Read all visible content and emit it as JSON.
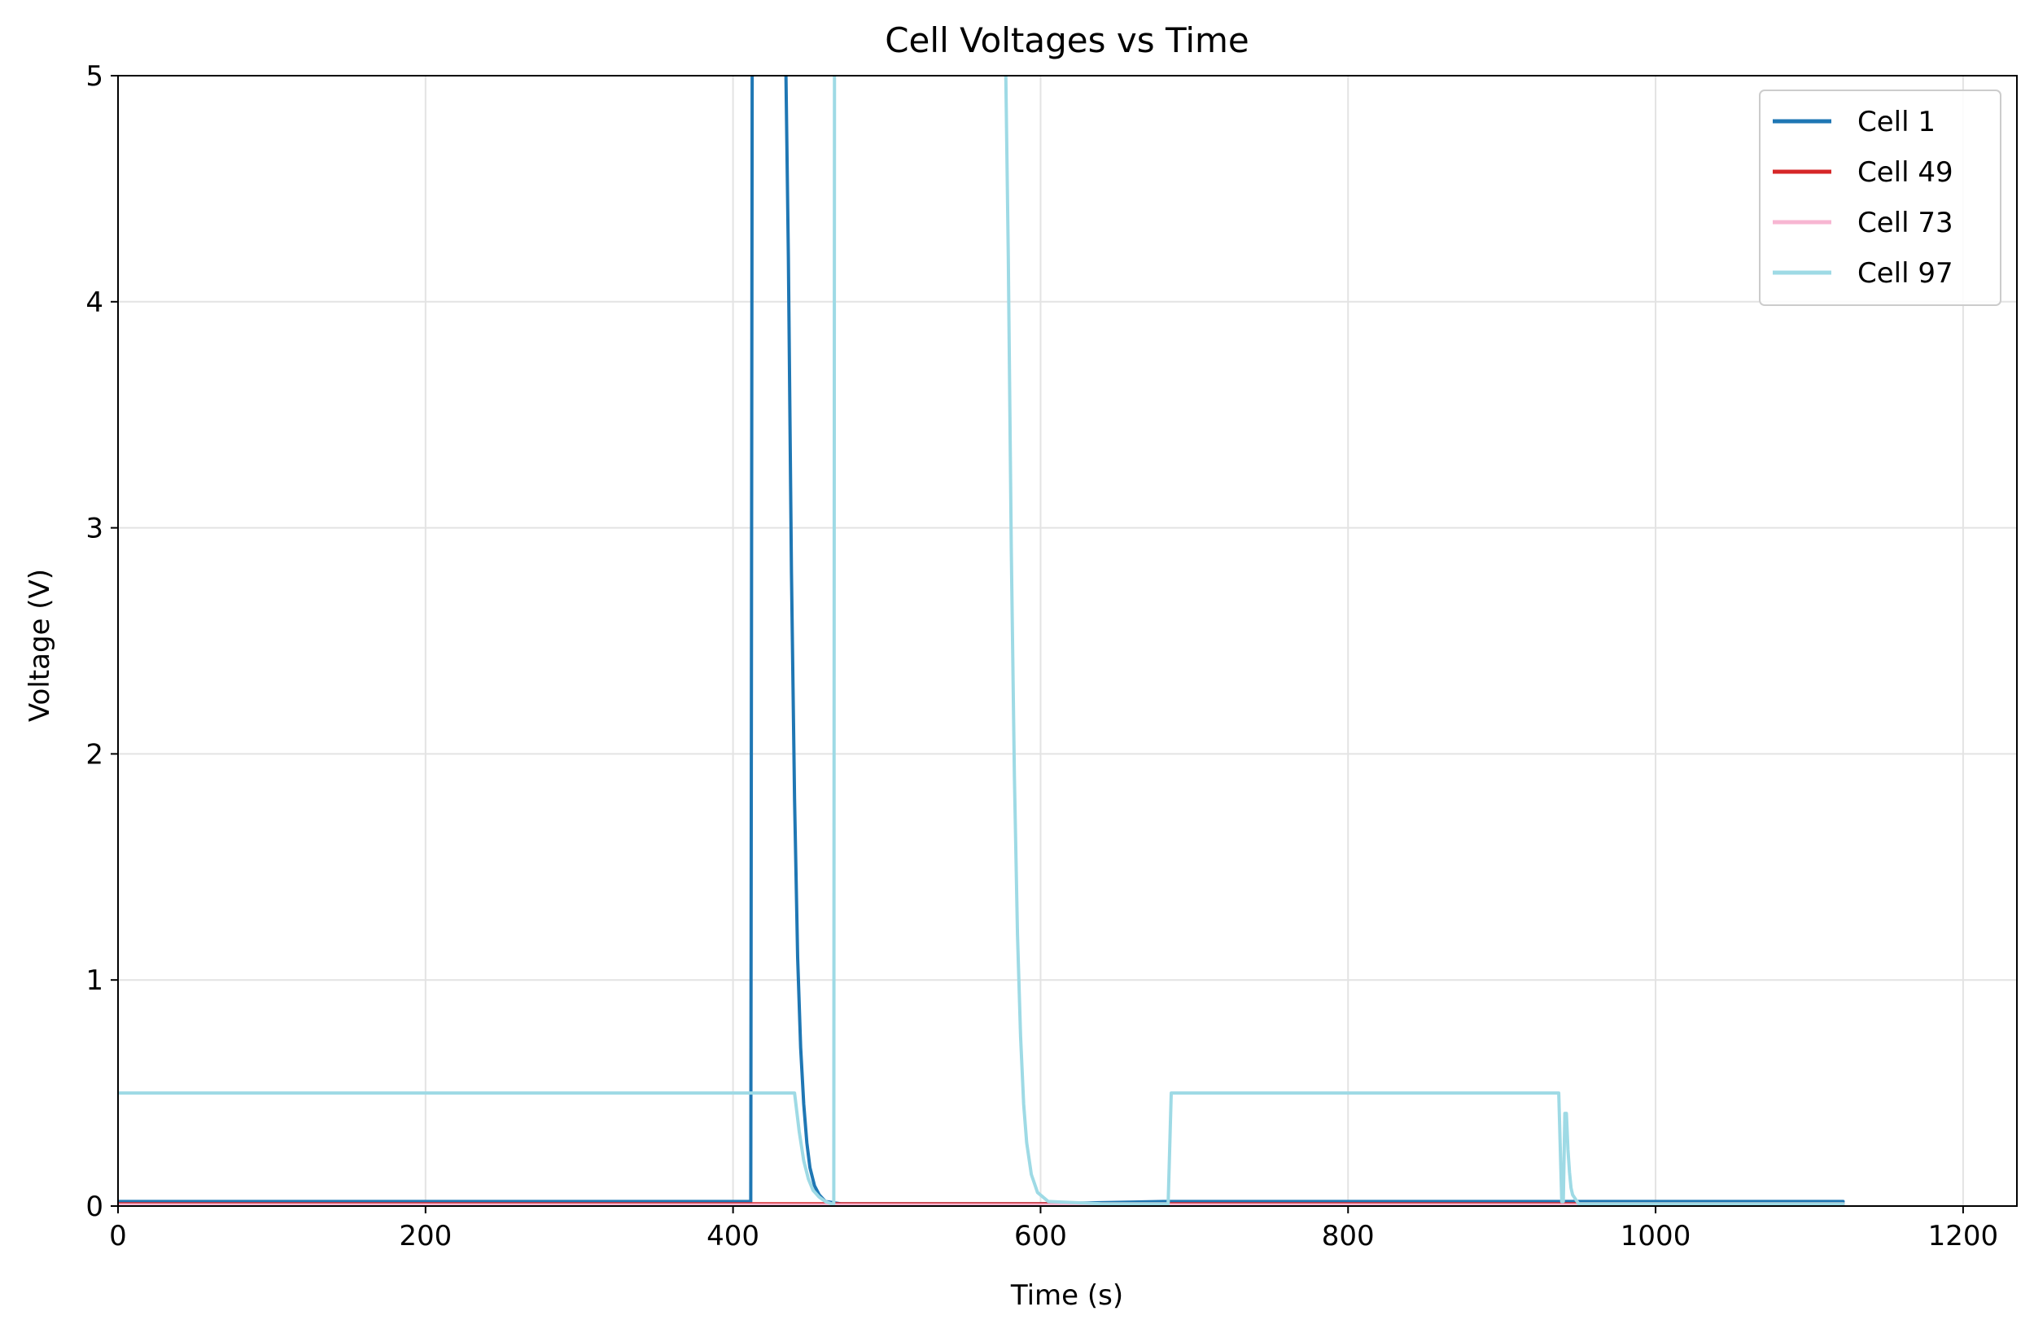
{
  "chart_data": {
    "type": "line",
    "title": "Cell Voltages vs Time",
    "xlabel": "Time (s)",
    "ylabel": "Voltage (V)",
    "xlim": [
      0,
      1235
    ],
    "ylim": [
      0,
      5
    ],
    "xticks": [
      0,
      200,
      400,
      600,
      800,
      1000,
      1200
    ],
    "yticks": [
      0,
      1,
      2,
      3,
      4,
      5
    ],
    "xtick_labels": [
      "0",
      "200",
      "400",
      "600",
      "800",
      "1000",
      "1200"
    ],
    "ytick_labels": [
      "0",
      "1",
      "2",
      "3",
      "4",
      "5"
    ],
    "grid": true,
    "legend_position": "top-right",
    "series": [
      {
        "name": "Cell 1",
        "color": "#1f77b4",
        "x": [
          0,
          120,
          250,
          405,
          411.5,
          412.5,
          414,
          434,
          436,
          438,
          440,
          442,
          444,
          446,
          448,
          450,
          453,
          456,
          460,
          470,
          540,
          600,
          680,
          800,
          930,
          945,
          1000,
          1060,
          1122
        ],
        "y": [
          0.02,
          0.02,
          0.02,
          0.02,
          0.02,
          5.2,
          5.2,
          5.2,
          4.2,
          2.8,
          1.8,
          1.1,
          0.7,
          0.45,
          0.28,
          0.17,
          0.09,
          0.05,
          0.02,
          0.01,
          0.01,
          0.01,
          0.02,
          0.02,
          0.02,
          0.02,
          0.02,
          0.02,
          0.02
        ]
      },
      {
        "name": "Cell 49",
        "color": "#d62728",
        "x": [
          0,
          150,
          300,
          450,
          600,
          750,
          900,
          1000,
          1122
        ],
        "y": [
          0.01,
          0.01,
          0.01,
          0.01,
          0.01,
          0.01,
          0.01,
          0.01,
          0.01
        ]
      },
      {
        "name": "Cell 73",
        "color": "#f7b6d2",
        "x": [
          0,
          300,
          600,
          900,
          1122
        ],
        "y": [
          0.005,
          0.005,
          0.005,
          0.005,
          0.005
        ]
      },
      {
        "name": "Cell 97",
        "color": "#9edae5",
        "x": [
          0,
          100,
          200,
          300,
          400,
          440,
          443,
          446,
          449,
          452,
          456,
          460,
          464,
          465.5,
          466,
          467,
          577,
          579,
          581,
          583,
          585,
          587,
          589,
          591,
          594,
          598,
          605,
          640,
          683,
          685,
          800,
          937,
          939,
          940,
          941,
          942,
          943,
          944,
          945,
          946,
          948,
          950,
          955,
          1000,
          1122
        ],
        "y": [
          0.5,
          0.5,
          0.5,
          0.5,
          0.5,
          0.5,
          0.33,
          0.2,
          0.12,
          0.07,
          0.04,
          0.02,
          0.01,
          0.01,
          5.2,
          5.2,
          5.2,
          4.2,
          2.9,
          1.9,
          1.2,
          0.75,
          0.45,
          0.28,
          0.14,
          0.06,
          0.02,
          0.01,
          0.01,
          0.5,
          0.5,
          0.5,
          0.02,
          0.02,
          0.41,
          0.41,
          0.25,
          0.15,
          0.08,
          0.05,
          0.03,
          0.01,
          0.01,
          0.01,
          0.01
        ]
      }
    ]
  }
}
